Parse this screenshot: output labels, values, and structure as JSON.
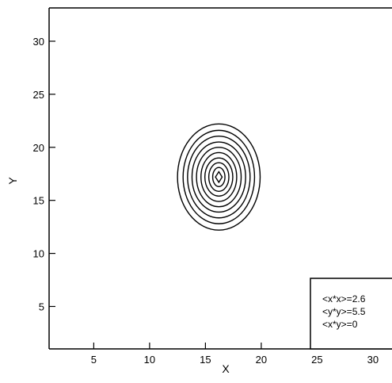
{
  "chart_data": {
    "type": "contour",
    "xlabel": "X",
    "ylabel": "Y",
    "xlim": [
      1,
      32
    ],
    "ylim": [
      1,
      32
    ],
    "xticks": [
      5,
      10,
      15,
      20,
      25,
      30
    ],
    "yticks": [
      5,
      10,
      15,
      20,
      25,
      30
    ],
    "contours": {
      "center": [
        16.2,
        17.2
      ],
      "semi_axis_x": [
        3.7,
        3.2,
        2.8,
        2.4,
        2.0,
        1.6,
        1.25,
        0.9,
        0.55,
        0.3
      ],
      "semi_axis_y": [
        5.0,
        4.4,
        3.85,
        3.3,
        2.8,
        2.3,
        1.8,
        1.35,
        0.9,
        0.5
      ]
    },
    "annotation": {
      "position": "bottom-right",
      "lines": [
        "<x*x>=2.6",
        "<y*y>=5.5",
        "<x*y>=0"
      ]
    }
  }
}
